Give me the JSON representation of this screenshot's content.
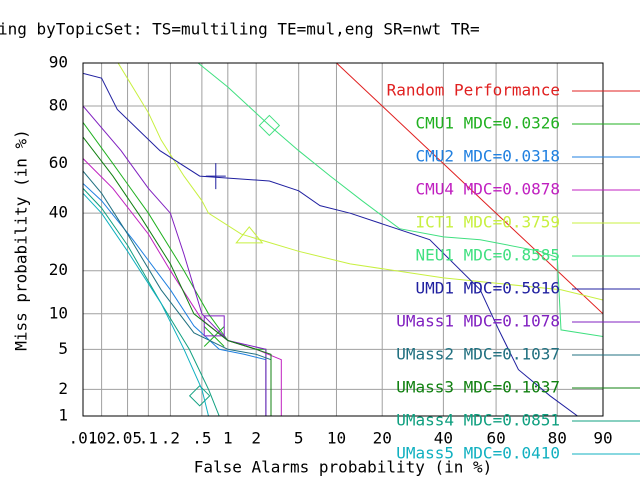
{
  "chart_data": {
    "type": "line",
    "scale": "normal-deviate",
    "title": "ing byTopicSet: TS=multiling TE=mul,eng SR=nwt TR=",
    "x_label": "False Alarms probability (in %)",
    "y_label": "Miss probability (in %)",
    "grid": true,
    "xlim": [
      0.01,
      90
    ],
    "ylim": [
      1,
      90
    ],
    "xticks": [
      {
        "value": 0.01,
        "label": ".01"
      },
      {
        "value": 0.02,
        "label": ".02"
      },
      {
        "value": 0.05,
        "label": ".05"
      },
      {
        "value": 0.1,
        "label": ".1"
      },
      {
        "value": 0.2,
        "label": ".2"
      },
      {
        "value": 0.5,
        "label": ".5"
      },
      1,
      2,
      5,
      10,
      20,
      40,
      60,
      80,
      90
    ],
    "yticks": [
      1,
      2,
      5,
      10,
      20,
      40,
      60,
      80,
      90
    ],
    "series": [
      {
        "name": "Random Performance",
        "color": "#e02020",
        "x": [
          10,
          20,
          40,
          60,
          80,
          90
        ],
        "values": [
          90,
          80,
          60,
          40,
          20,
          10
        ]
      },
      {
        "name": "CMU1 MDC=0.0326",
        "color": "#20b020",
        "x": [
          0.01,
          0.03,
          0.1,
          0.3,
          0.6,
          1,
          2,
          2.5,
          2.5
        ],
        "values": [
          75,
          60,
          40,
          20,
          10,
          6,
          5,
          5,
          1
        ],
        "marker": {
          "x": 0.7,
          "y": 6.5
        },
        "marker_shape": "x"
      },
      {
        "name": "CMU2 MDC=0.0318",
        "color": "#2080e0",
        "x": [
          0.01,
          0.02,
          0.06,
          0.2,
          0.4,
          0.8,
          1.5,
          2.5,
          2.5
        ],
        "values": [
          52,
          45,
          30,
          15,
          8,
          5,
          4.5,
          4,
          1
        ]
      },
      {
        "name": "CMU4 MDC=0.0878",
        "color": "#c020c0",
        "x": [
          0.01,
          0.03,
          0.1,
          0.2,
          0.5,
          1,
          2,
          3.5,
          3.5
        ],
        "values": [
          62,
          50,
          32,
          20,
          9,
          6,
          5,
          4,
          1
        ]
      },
      {
        "name": "ICT1 MDC=0.3759",
        "color": "#c8f040",
        "x": [
          0.036,
          0.1,
          0.15,
          0.3,
          0.5,
          0.6,
          1.4,
          5,
          12.5,
          40,
          81,
          90
        ],
        "values": [
          90,
          78,
          69,
          55,
          45,
          40,
          32,
          26,
          22,
          18,
          15,
          12.7
        ],
        "marker": {
          "x": 1.7,
          "y": 31
        },
        "marker_shape": "triangle"
      },
      {
        "name": "NEU1 MDC=0.8585",
        "color": "#40e080",
        "x": [
          0.45,
          1,
          2.7,
          5,
          9,
          15,
          25,
          40,
          54,
          75,
          80,
          81,
          90
        ],
        "values": [
          90,
          85,
          74,
          65,
          55,
          45,
          34,
          31,
          30,
          26,
          24,
          7.4,
          6.5
        ],
        "marker": {
          "x": 2.7,
          "y": 74
        },
        "marker_shape": "diamond"
      },
      {
        "name": "UMD1 MDC=0.5816",
        "color": "#2020a0",
        "x": [
          0.01,
          0.02,
          0.035,
          0.145,
          0.47,
          2.7,
          5,
          7.5,
          12.5,
          35,
          54,
          61,
          68,
          78,
          85
        ],
        "values": [
          88,
          87,
          79,
          65,
          55,
          53,
          49,
          43,
          40,
          30,
          15,
          7.4,
          3.2,
          1.7,
          1
        ],
        "marker": {
          "x": 0.73,
          "y": 55
        },
        "marker_shape": "plus"
      },
      {
        "name": "UMass1 MDC=0.1078",
        "color": "#8020c0",
        "x": [
          0.01,
          0.04,
          0.1,
          0.2,
          0.3,
          0.5,
          1,
          2.5,
          2.5
        ],
        "values": [
          80,
          65,
          50,
          40,
          25,
          10,
          6,
          5,
          1
        ],
        "marker": {
          "x": 0.7,
          "y": 8
        },
        "marker_shape": "square"
      },
      {
        "name": "UMass2 MDC=0.1037",
        "color": "#207080",
        "x": [
          0.01,
          0.02,
          0.05,
          0.15,
          0.4,
          1,
          2,
          2.8,
          2.8
        ],
        "values": [
          57,
          48,
          32,
          15,
          7,
          5,
          4.5,
          4,
          1
        ]
      },
      {
        "name": "UMass3 MDC=0.1037",
        "color": "#108010",
        "x": [
          0.01,
          0.03,
          0.08,
          0.2,
          0.4,
          1,
          2,
          2.8,
          2.8
        ],
        "values": [
          70,
          55,
          38,
          22,
          10,
          6,
          5,
          4.5,
          1
        ]
      },
      {
        "name": "UMass4 MDC=0.0851",
        "color": "#10a080",
        "x": [
          0.01,
          0.02,
          0.05,
          0.15,
          0.35,
          0.6,
          0.8
        ],
        "values": [
          50,
          42,
          28,
          12,
          5,
          2,
          1
        ],
        "marker": {
          "x": 0.47,
          "y": 1.7
        },
        "marker_shape": "diamond"
      },
      {
        "name": "UMass5 MDC=0.0410",
        "color": "#10b0c0",
        "x": [
          0.01,
          0.02,
          0.05,
          0.15,
          0.3,
          0.5,
          0.6
        ],
        "values": [
          48,
          40,
          26,
          12,
          5,
          2,
          1
        ]
      }
    ]
  }
}
